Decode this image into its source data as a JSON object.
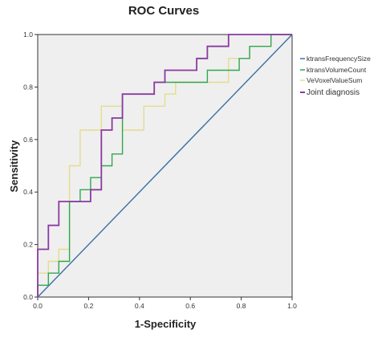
{
  "chart_data": {
    "type": "line",
    "title": "ROC Curves",
    "xlabel": "1-Specificity",
    "ylabel": "Sensitivity",
    "xlim": [
      0,
      1
    ],
    "ylim": [
      0,
      1
    ],
    "xticks": [
      "0.0",
      "0.2",
      "0.4",
      "0.6",
      "0.8",
      "1.0"
    ],
    "yticks": [
      "0.0",
      "0.2",
      "0.4",
      "0.6",
      "0.8",
      "1.0"
    ],
    "grid": false,
    "legend_position": "right",
    "series": [
      {
        "name": "ktransFrequencySize",
        "color": "#3a6fb0",
        "x": [
          0,
          0,
          1
        ],
        "y": [
          0,
          0,
          1
        ]
      },
      {
        "name": "ktransVolumeCount",
        "color": "#2fa84f",
        "x": [
          0,
          0,
          0.042,
          0.042,
          0.083,
          0.083,
          0.125,
          0.125,
          0.167,
          0.167,
          0.208,
          0.208,
          0.25,
          0.25,
          0.292,
          0.292,
          0.333,
          0.333,
          0.458,
          0.458,
          0.5,
          0.5,
          0.667,
          0.667,
          0.792,
          0.792,
          0.833,
          0.833,
          0.917,
          0.917,
          1.0
        ],
        "y": [
          0,
          0.045,
          0.045,
          0.091,
          0.091,
          0.136,
          0.136,
          0.364,
          0.364,
          0.409,
          0.409,
          0.455,
          0.455,
          0.5,
          0.5,
          0.545,
          0.545,
          0.773,
          0.773,
          0.818,
          0.818,
          0.818,
          0.818,
          0.864,
          0.864,
          0.909,
          0.909,
          0.955,
          0.955,
          1.0,
          1.0
        ]
      },
      {
        "name": "VeVoxelValueSum",
        "color": "#e6dc8c",
        "x": [
          0,
          0,
          0.042,
          0.042,
          0.083,
          0.083,
          0.125,
          0.125,
          0.167,
          0.167,
          0.25,
          0.25,
          0.333,
          0.333,
          0.417,
          0.417,
          0.5,
          0.5,
          0.542,
          0.542,
          0.75,
          0.75,
          0.833,
          0.833,
          0.917,
          0.917,
          1.0
        ],
        "y": [
          0,
          0.091,
          0.091,
          0.136,
          0.136,
          0.182,
          0.182,
          0.5,
          0.5,
          0.636,
          0.636,
          0.727,
          0.727,
          0.636,
          0.636,
          0.727,
          0.727,
          0.773,
          0.773,
          0.818,
          0.818,
          0.909,
          0.909,
          0.955,
          0.955,
          1.0,
          1.0
        ]
      },
      {
        "name": "Joint diagnosis",
        "color": "#8a3aa0",
        "x": [
          0,
          0,
          0.042,
          0.042,
          0.083,
          0.083,
          0.208,
          0.208,
          0.25,
          0.25,
          0.292,
          0.292,
          0.333,
          0.333,
          0.458,
          0.458,
          0.5,
          0.5,
          0.583,
          0.583,
          0.625,
          0.625,
          0.667,
          0.667,
          0.75,
          0.75,
          0.875,
          0.875,
          1.0
        ],
        "y": [
          0,
          0.182,
          0.182,
          0.273,
          0.273,
          0.364,
          0.364,
          0.409,
          0.409,
          0.636,
          0.636,
          0.682,
          0.682,
          0.773,
          0.773,
          0.818,
          0.818,
          0.864,
          0.864,
          0.864,
          0.864,
          0.909,
          0.909,
          0.955,
          0.955,
          1.0,
          1.0,
          1.0,
          1.0
        ]
      },
      {
        "name": "",
        "color": "#f0ee7a",
        "x": [
          0,
          1
        ],
        "y": [
          0,
          1
        ]
      }
    ]
  }
}
